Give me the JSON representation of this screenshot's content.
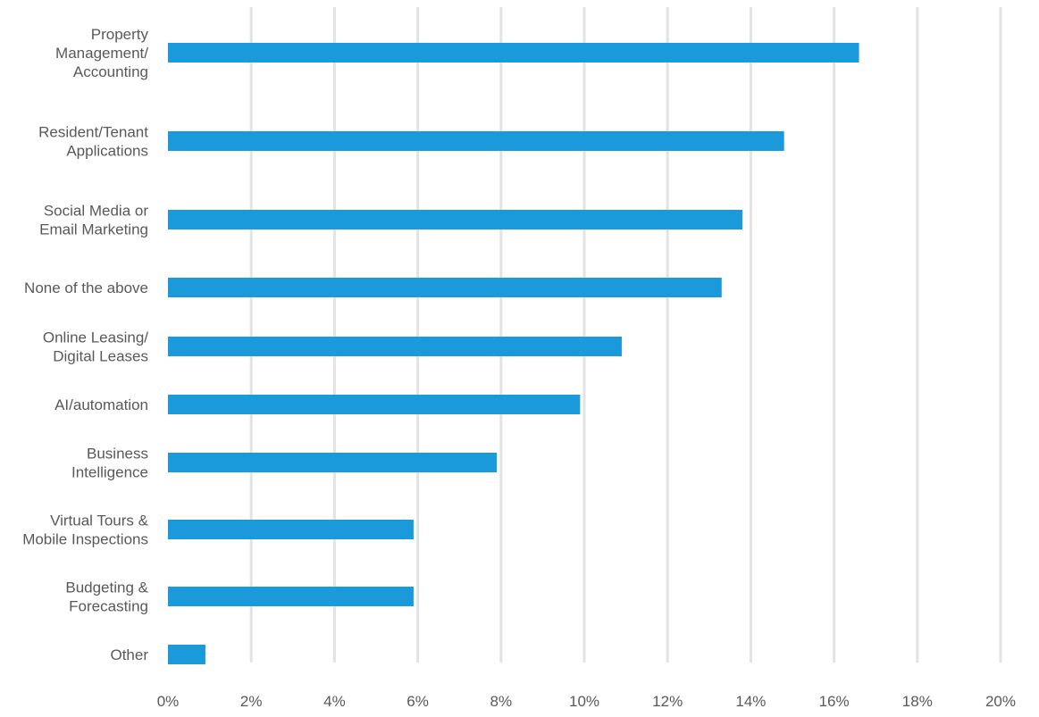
{
  "chart_data": {
    "type": "bar",
    "orientation": "horizontal",
    "categories": [
      "Property\nManagement/\nAccounting",
      "Resident/Tenant\nApplications",
      "Social Media or\nEmail Marketing",
      "None of the above",
      "Online Leasing/\nDigital Leases",
      "AI/automation",
      "Business\nIntelligence",
      "Virtual Tours &\nMobile Inspections",
      "Budgeting &\nForecasting",
      "Other"
    ],
    "values": [
      16.6,
      14.8,
      13.8,
      13.3,
      10.9,
      9.9,
      7.9,
      5.9,
      5.9,
      0.9
    ],
    "xlim": [
      0,
      20
    ],
    "x_ticks": [
      {
        "value": 0,
        "label": "0%"
      },
      {
        "value": 2,
        "label": "2%"
      },
      {
        "value": 4,
        "label": "4%"
      },
      {
        "value": 6,
        "label": "6%"
      },
      {
        "value": 8,
        "label": "8%"
      },
      {
        "value": 10,
        "label": "10%"
      },
      {
        "value": 12,
        "label": "12%"
      },
      {
        "value": 14,
        "label": "14%"
      },
      {
        "value": 16,
        "label": "16%"
      },
      {
        "value": 18,
        "label": "18%"
      },
      {
        "value": 20,
        "label": "20%"
      }
    ],
    "grid": true,
    "legend": "none",
    "title": "",
    "xlabel": "",
    "ylabel": "",
    "colors": {
      "bar": "#1A9ADA",
      "grid": "#E3E3E3",
      "text": "#595959"
    }
  }
}
